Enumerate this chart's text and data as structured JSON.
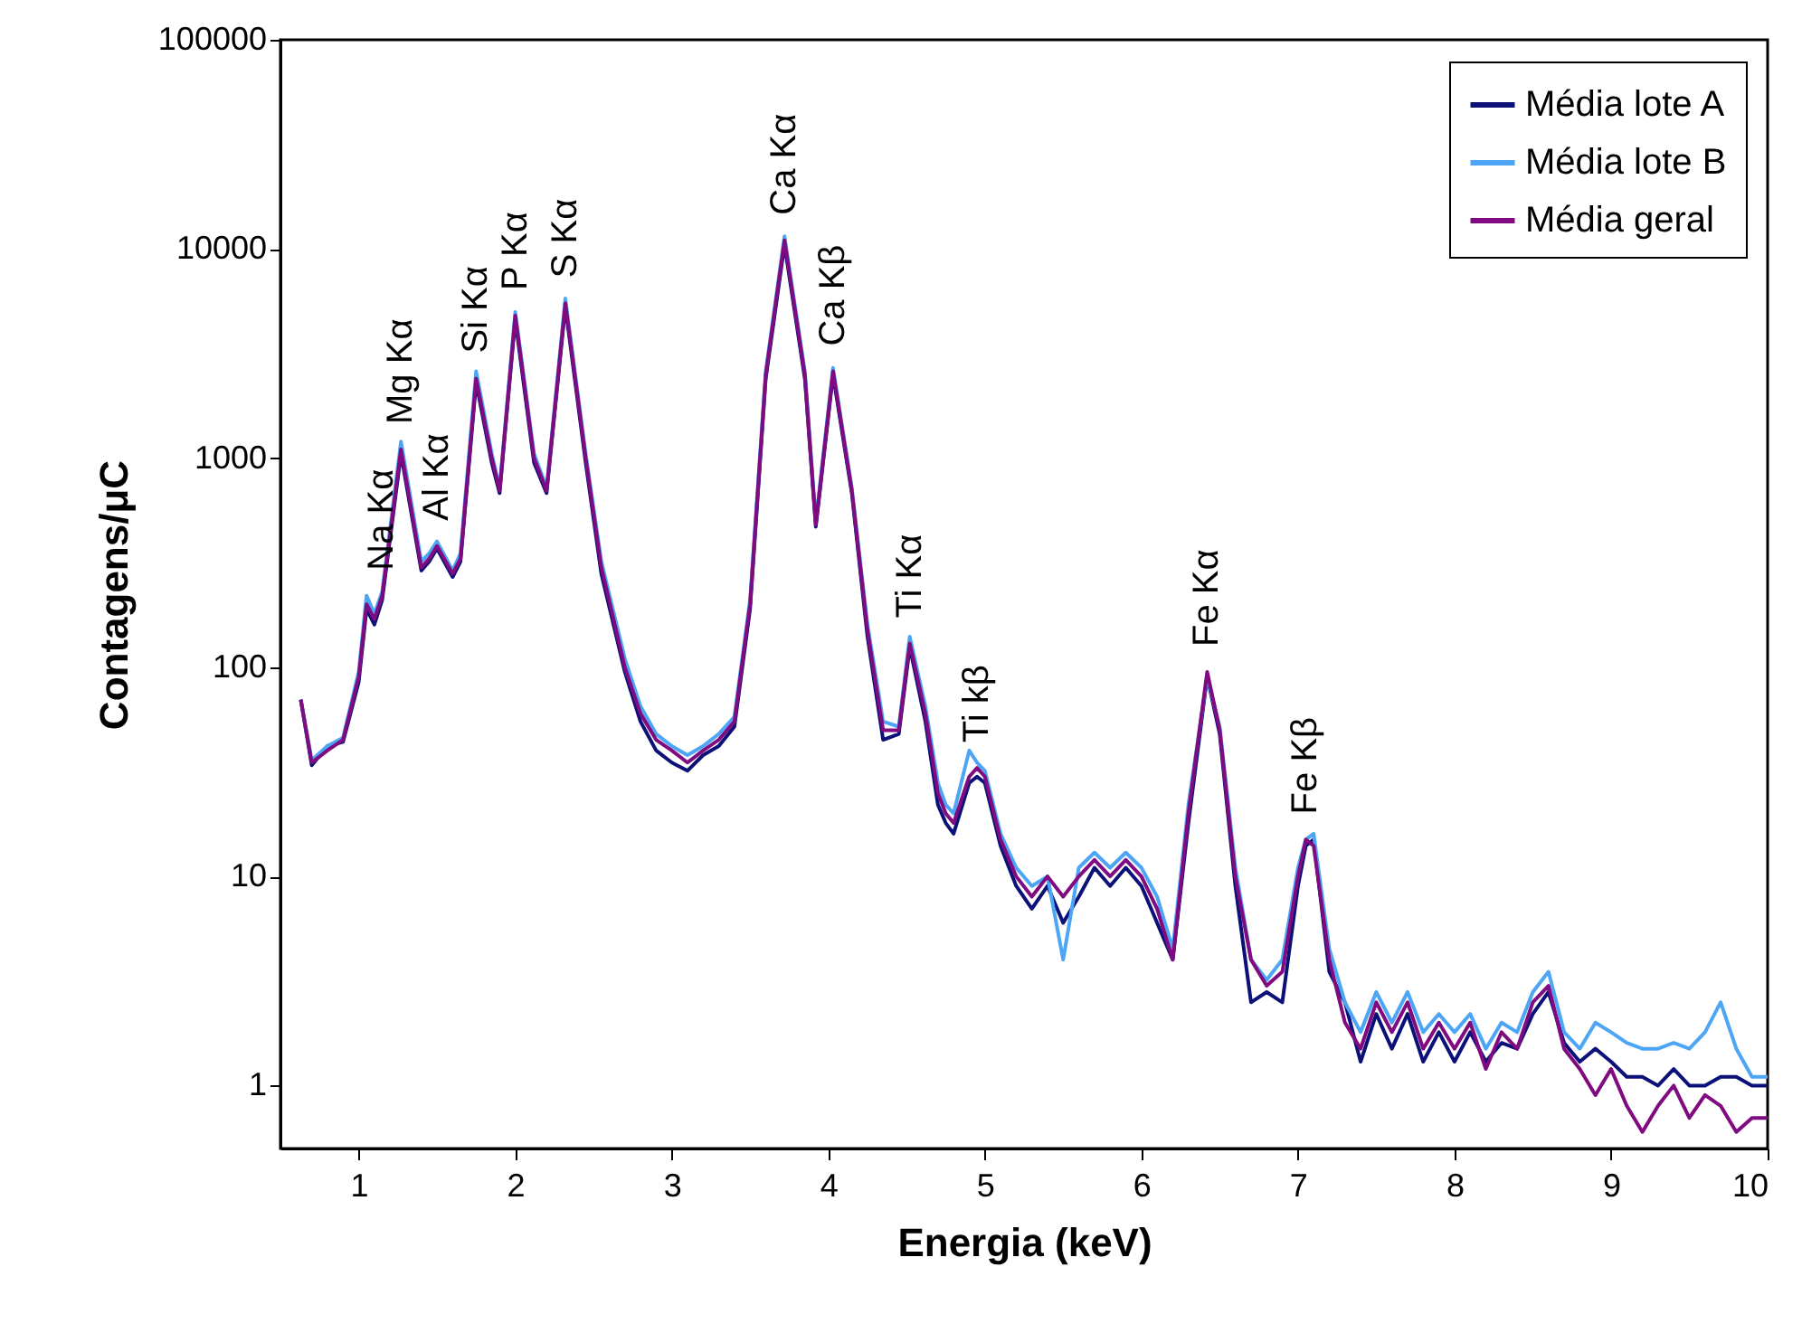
{
  "chart_data": {
    "type": "line",
    "xlabel": "Energia (keV)",
    "ylabel": "Contagens/μC",
    "xlim": [
      0.5,
      10
    ],
    "xticks": [
      1,
      2,
      3,
      4,
      5,
      6,
      7,
      8,
      9,
      10
    ],
    "ylim": [
      0.5,
      100000
    ],
    "yticks": [
      1,
      10,
      100,
      1000,
      10000,
      100000
    ],
    "log": true,
    "grid": false,
    "legend": "top right",
    "line_style": "solid",
    "x": [
      0.63,
      0.7,
      0.8,
      0.9,
      1.0,
      1.05,
      1.1,
      1.15,
      1.27,
      1.4,
      1.45,
      1.5,
      1.6,
      1.65,
      1.75,
      1.85,
      1.9,
      2.0,
      2.12,
      2.2,
      2.32,
      2.45,
      2.55,
      2.7,
      2.8,
      2.9,
      3.0,
      3.1,
      3.2,
      3.3,
      3.4,
      3.5,
      3.6,
      3.72,
      3.85,
      3.92,
      4.03,
      4.15,
      4.25,
      4.35,
      4.45,
      4.52,
      4.62,
      4.7,
      4.75,
      4.8,
      4.9,
      4.95,
      5.0,
      5.1,
      5.2,
      5.3,
      5.4,
      5.5,
      5.6,
      5.7,
      5.8,
      5.9,
      6.0,
      6.1,
      6.2,
      6.3,
      6.42,
      6.5,
      6.6,
      6.7,
      6.8,
      6.9,
      7.0,
      7.05,
      7.1,
      7.2,
      7.3,
      7.4,
      7.5,
      7.6,
      7.7,
      7.8,
      7.9,
      8.0,
      8.1,
      8.2,
      8.3,
      8.4,
      8.5,
      8.6,
      8.7,
      8.8,
      8.9,
      9.0,
      9.1,
      9.2,
      9.3,
      9.4,
      9.5,
      9.6,
      9.7,
      9.8,
      9.9,
      10.0
    ],
    "series": [
      {
        "name": "Média lote A",
        "color": "#0b1178",
        "values": [
          70,
          34,
          42,
          44,
          85,
          190,
          160,
          210,
          1050,
          290,
          320,
          370,
          270,
          320,
          2300,
          950,
          680,
          4600,
          950,
          680,
          5300,
          950,
          280,
          95,
          55,
          40,
          35,
          32,
          38,
          42,
          52,
          190,
          2400,
          10500,
          2400,
          470,
          2500,
          680,
          140,
          45,
          48,
          125,
          55,
          22,
          18,
          16,
          28,
          30,
          28,
          14,
          9,
          7,
          9,
          6,
          8,
          11,
          9,
          11,
          9,
          6,
          4,
          18,
          90,
          48,
          9,
          2.5,
          2.8,
          2.5,
          9,
          14,
          15,
          3.5,
          2.5,
          1.3,
          2.2,
          1.5,
          2.2,
          1.3,
          1.8,
          1.3,
          1.8,
          1.3,
          1.6,
          1.5,
          2.2,
          2.8,
          1.6,
          1.3,
          1.5,
          1.3,
          1.1,
          1.1,
          1.0,
          1.2,
          1.0,
          1.0,
          1.1,
          1.1,
          1.0,
          1.0
        ]
      },
      {
        "name": "Média lote B",
        "color": "#4da6f5",
        "values": [
          70,
          36,
          42,
          46,
          95,
          220,
          180,
          230,
          1200,
          320,
          350,
          400,
          290,
          350,
          2600,
          1050,
          720,
          5000,
          1050,
          720,
          5800,
          1050,
          320,
          110,
          65,
          48,
          42,
          38,
          42,
          48,
          58,
          210,
          2600,
          11500,
          2600,
          500,
          2700,
          720,
          160,
          55,
          52,
          140,
          65,
          28,
          22,
          20,
          40,
          35,
          32,
          16,
          11,
          9,
          10,
          4,
          11,
          13,
          11,
          13,
          11,
          8,
          4.5,
          22,
          90,
          52,
          11,
          4,
          3.2,
          4,
          11,
          15,
          16,
          4.5,
          2.5,
          1.8,
          2.8,
          2,
          2.8,
          1.8,
          2.2,
          1.8,
          2.2,
          1.5,
          2,
          1.8,
          2.8,
          3.5,
          1.8,
          1.5,
          2,
          1.8,
          1.6,
          1.5,
          1.5,
          1.6,
          1.5,
          1.8,
          2.5,
          1.5,
          1.1,
          1.1
        ]
      },
      {
        "name": "Média geral",
        "color": "#800a80",
        "values": [
          70,
          35,
          40,
          45,
          90,
          200,
          170,
          220,
          1100,
          300,
          330,
          380,
          280,
          330,
          2400,
          1000,
          700,
          4800,
          1000,
          700,
          5500,
          1000,
          300,
          100,
          60,
          45,
          40,
          35,
          40,
          45,
          55,
          200,
          2500,
          11000,
          2500,
          480,
          2600,
          700,
          150,
          50,
          50,
          130,
          60,
          25,
          20,
          18,
          30,
          33,
          30,
          15,
          10,
          8,
          10,
          8,
          10,
          12,
          10,
          12,
          10,
          7,
          4,
          20,
          95,
          50,
          10,
          4,
          3,
          3.5,
          10,
          15,
          14,
          4,
          2,
          1.5,
          2.5,
          1.8,
          2.5,
          1.5,
          2,
          1.5,
          2,
          1.2,
          1.8,
          1.5,
          2.5,
          3,
          1.5,
          1.2,
          0.9,
          1.2,
          0.8,
          0.6,
          0.8,
          1.0,
          0.7,
          0.9,
          0.8,
          0.6,
          0.7,
          0.7
        ]
      }
    ],
    "annotations": [
      {
        "text": "Na Kα",
        "x": 1.15,
        "y": 220
      },
      {
        "text": "Mg Kα",
        "x": 1.27,
        "y": 1100
      },
      {
        "text": "Al Kα",
        "x": 1.5,
        "y": 380
      },
      {
        "text": "Si Kα",
        "x": 1.75,
        "y": 2400
      },
      {
        "text": "P Kα",
        "x": 2.0,
        "y": 4800
      },
      {
        "text": "S Kα",
        "x": 2.32,
        "y": 5500
      },
      {
        "text": "Ca Kα",
        "x": 3.72,
        "y": 11000
      },
      {
        "text": "Ca Kβ",
        "x": 4.03,
        "y": 2600
      },
      {
        "text": "Ti Kα",
        "x": 4.52,
        "y": 130
      },
      {
        "text": "Ti kβ",
        "x": 4.95,
        "y": 33
      },
      {
        "text": "Fe Kα",
        "x": 6.42,
        "y": 95
      },
      {
        "text": "Fe Kβ",
        "x": 7.05,
        "y": 15
      }
    ]
  }
}
